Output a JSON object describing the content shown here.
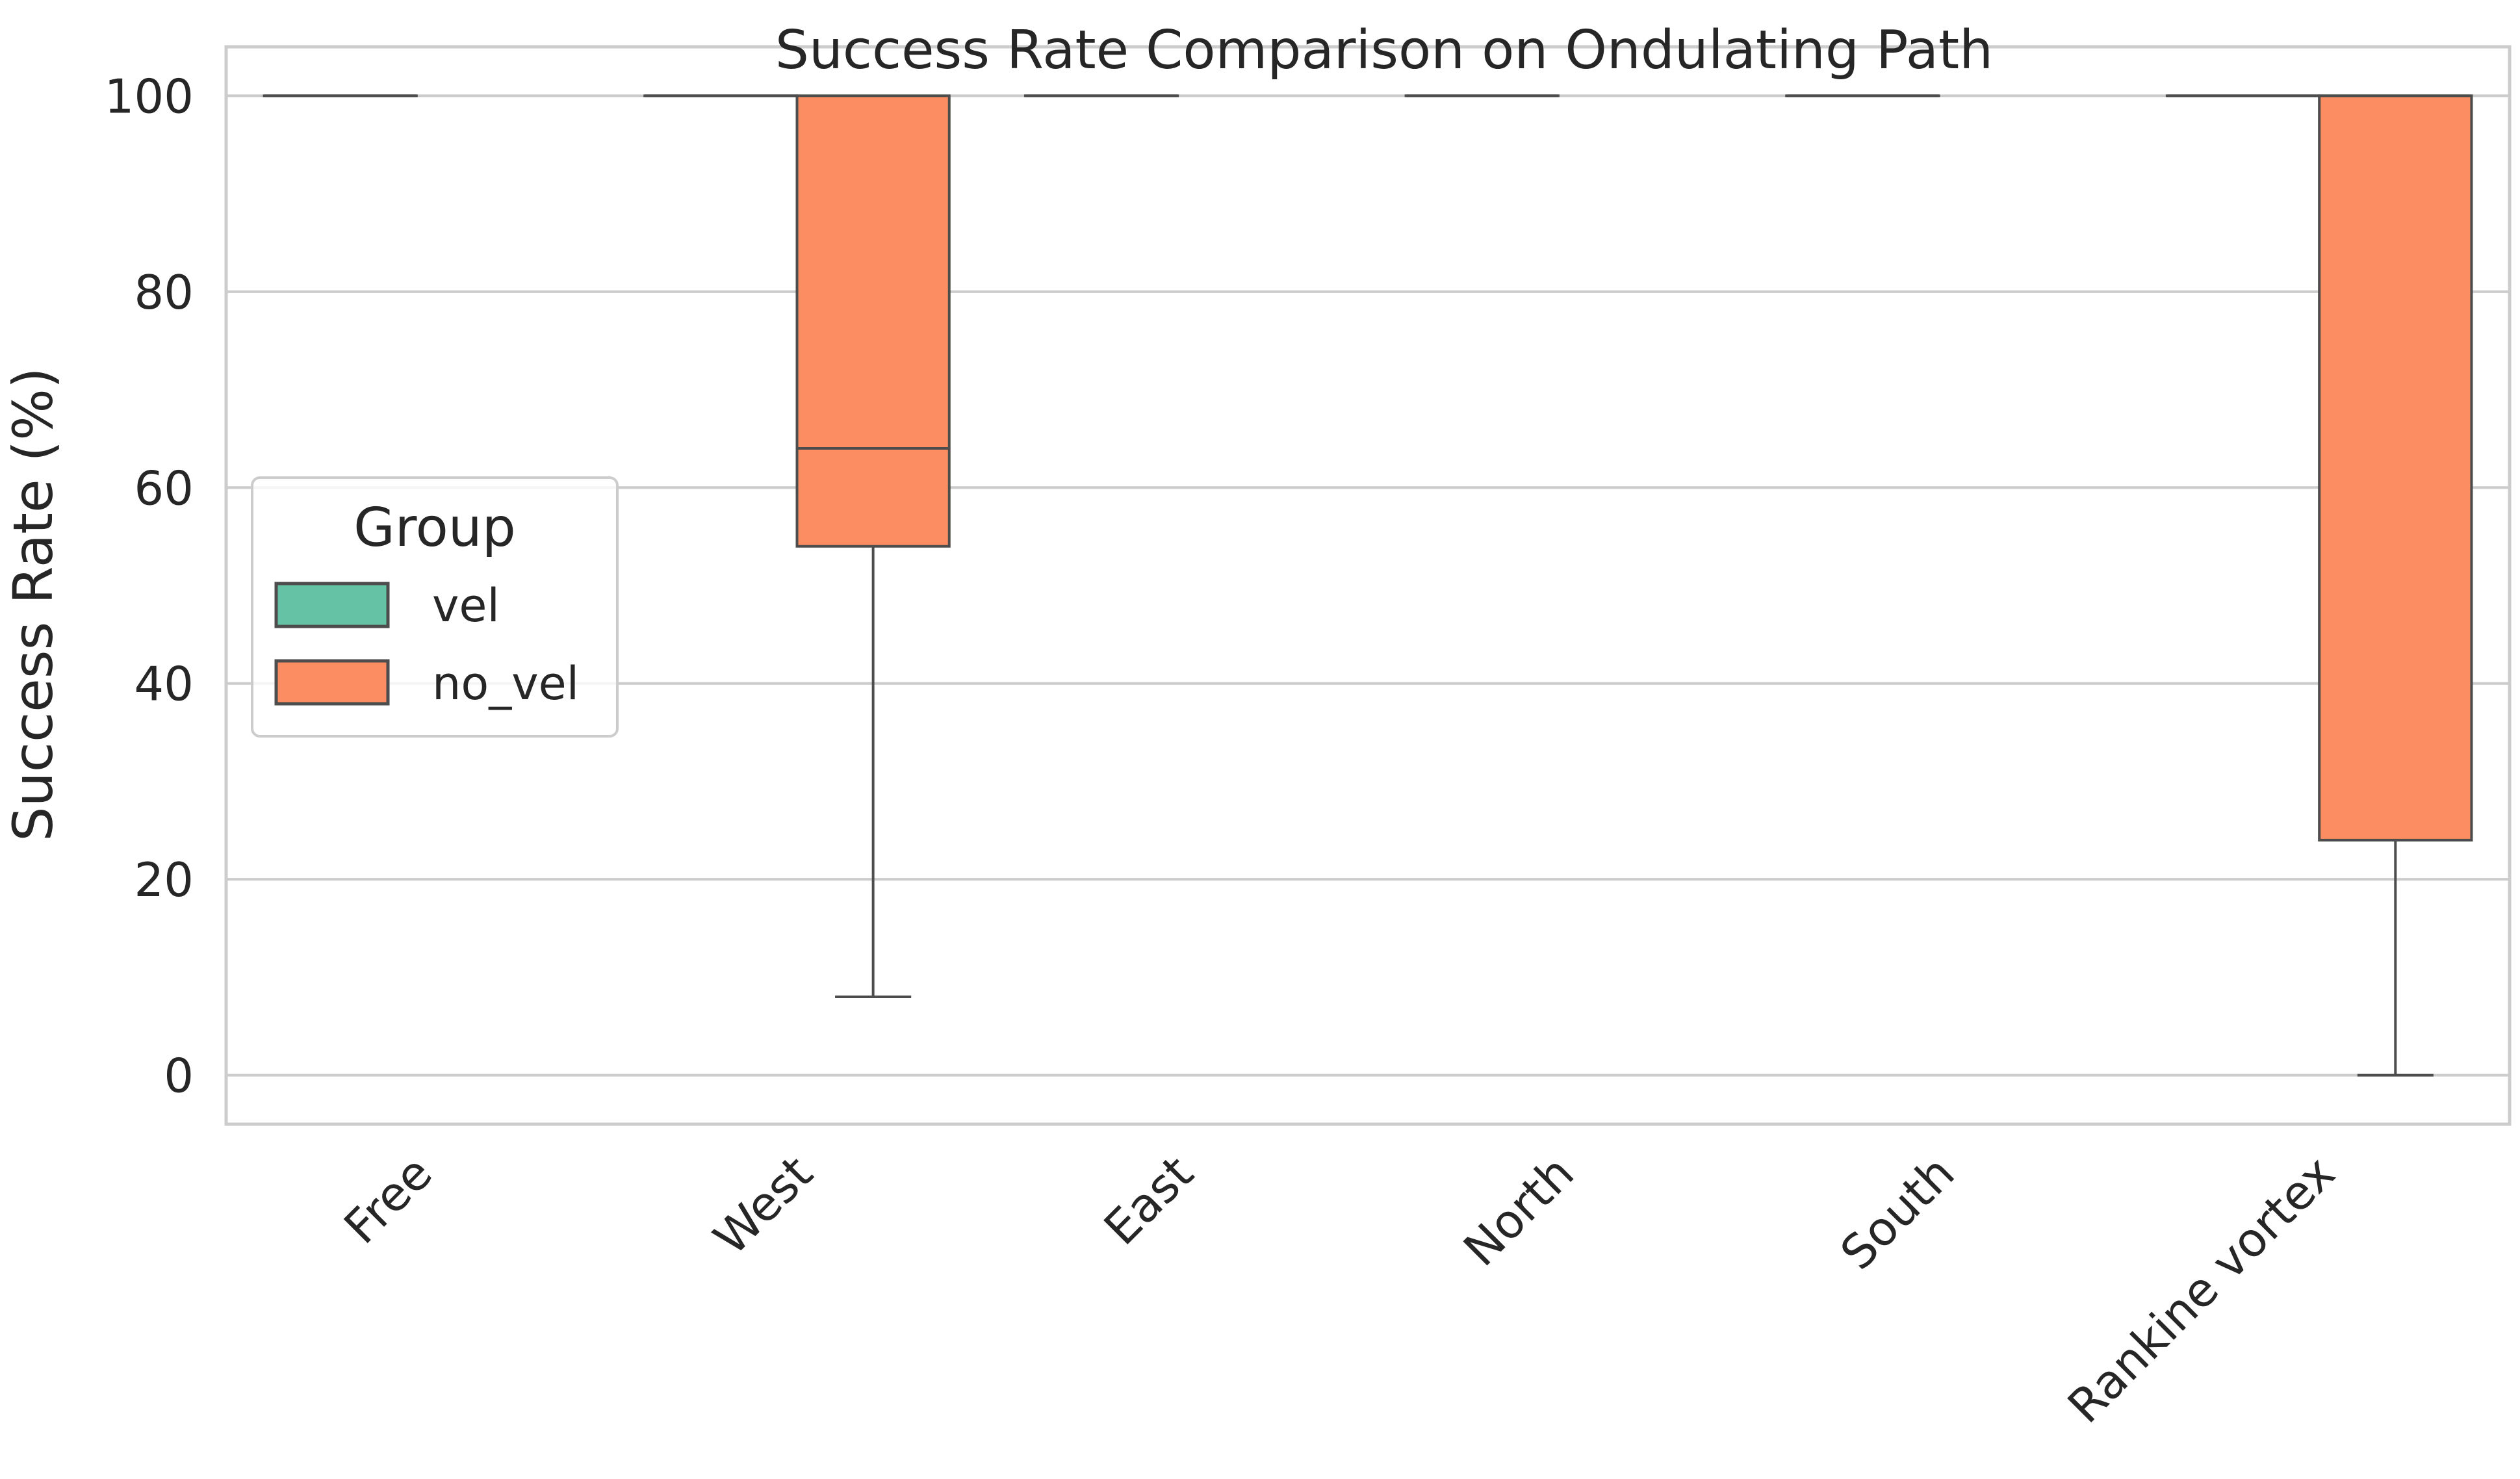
{
  "chart_data": {
    "type": "box",
    "title": "Success Rate Comparison on Ondulating Path",
    "xlabel": "",
    "ylabel": "Success Rate (%)",
    "ylim": [
      -5,
      105
    ],
    "yticks": [
      0,
      20,
      40,
      60,
      80,
      100
    ],
    "grid": true,
    "categories": [
      "Free",
      "West",
      "East",
      "North",
      "South",
      "Rankine vortex"
    ],
    "legend": {
      "title": "Group",
      "placement": "center-left"
    },
    "series": [
      {
        "name": "vel",
        "color": "#66c2a5",
        "boxes": [
          {
            "whislo": 100,
            "q1": 100,
            "med": 100,
            "q3": 100,
            "whishi": 100
          },
          {
            "whislo": 100,
            "q1": 100,
            "med": 100,
            "q3": 100,
            "whishi": 100
          },
          {
            "whislo": 100,
            "q1": 100,
            "med": 100,
            "q3": 100,
            "whishi": 100
          },
          {
            "whislo": 100,
            "q1": 100,
            "med": 100,
            "q3": 100,
            "whishi": 100
          },
          {
            "whislo": 100,
            "q1": 100,
            "med": 100,
            "q3": 100,
            "whishi": 100
          },
          {
            "whislo": 100,
            "q1": 100,
            "med": 100,
            "q3": 100,
            "whishi": 100
          }
        ]
      },
      {
        "name": "no_vel",
        "color": "#fc8d62",
        "boxes": [
          null,
          {
            "whislo": 8,
            "q1": 54,
            "med": 64,
            "q3": 100,
            "whishi": 100
          },
          null,
          null,
          null,
          {
            "whislo": 0,
            "q1": 24,
            "med": 100,
            "q3": 100,
            "whishi": 100
          }
        ]
      }
    ]
  },
  "colors": {
    "grid": "#cccccc",
    "frame": "#cccccc",
    "box_edge": "#4d4d4d",
    "text": "#262626"
  }
}
